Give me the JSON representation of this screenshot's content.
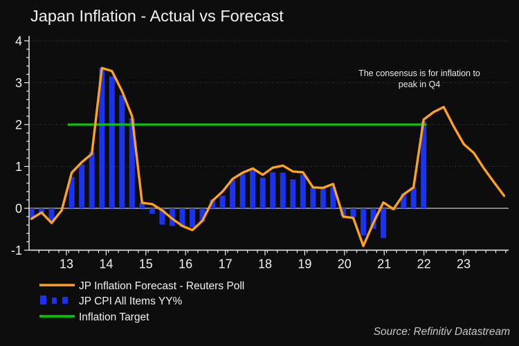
{
  "title": "Japan Inflation - Actual vs Forecast",
  "annotation": {
    "line1": "The consensus is for inflation to",
    "line2": "peak in Q4"
  },
  "source": "Source: Refinitiv Datastream",
  "legend": {
    "items": [
      {
        "label": "JP Inflation Forecast - Reuters Poll",
        "swatch": "line",
        "color": "#ffa21e"
      },
      {
        "label": "JP CPI All Items YY%",
        "swatch": "bars",
        "color": "#1c33ee"
      },
      {
        "label": "Inflation Target",
        "swatch": "line",
        "color": "#00cc00"
      }
    ]
  },
  "colors": {
    "background": "#0d0d0d",
    "forecast_line": "#ffa21e",
    "cpi_bars": "#1c33ee",
    "target_line": "#00cc00",
    "zero_line": "#ababab",
    "gridline": "#474747",
    "axis": "#f2f2f2",
    "text": "#f2f2f2"
  },
  "chart_data": {
    "type": "bar+line",
    "frequency": "quarterly",
    "ylim": [
      -1,
      4
    ],
    "y_tick_labels": [
      "-1",
      "0",
      "1",
      "2",
      "3",
      "4"
    ],
    "y_ticks": [
      -1,
      0,
      1,
      2,
      3,
      4
    ],
    "x_tick_labels": [
      "13",
      "14",
      "15",
      "16",
      "17",
      "18",
      "19",
      "20",
      "21",
      "22",
      "23"
    ],
    "grid_values": [
      1,
      2,
      3,
      4
    ],
    "series": [
      {
        "name": "JP CPI All Items YY%",
        "type": "bar",
        "color": "#1c33ee",
        "values": [
          -0.22,
          -0.13,
          -0.33,
          0,
          0.75,
          1.05,
          1.35,
          3.35,
          3.15,
          2.7,
          2.15,
          0.13,
          -0.13,
          -0.39,
          -0.42,
          -0.45,
          -0.45,
          -0.32,
          0.21,
          0.3,
          0.68,
          0.82,
          0.91,
          0.73,
          0.86,
          0.85,
          0.69,
          0.8,
          0.49,
          0.5,
          0.51,
          -0.18,
          -0.21,
          -0.65,
          -0.49,
          -0.71,
          -0.05,
          0.35,
          0.5,
          2.08
        ]
      },
      {
        "name": "JP Inflation Forecast - Reuters Poll",
        "type": "line",
        "color": "#ffa21e",
        "values": [
          -0.25,
          -0.1,
          -0.35,
          -0.05,
          0.85,
          1.1,
          1.3,
          3.35,
          3.28,
          2.8,
          2.2,
          0.13,
          0.1,
          -0.05,
          -0.25,
          -0.42,
          -0.52,
          -0.3,
          0.18,
          0.4,
          0.7,
          0.85,
          0.95,
          0.8,
          0.97,
          1.02,
          0.88,
          0.86,
          0.5,
          0.49,
          0.58,
          -0.2,
          -0.23,
          -0.9,
          -0.35,
          0.14,
          -0.02,
          0.33,
          0.5,
          2.12,
          2.3,
          2.42,
          1.95,
          1.53,
          1.32,
          0.95,
          0.62,
          0.3
        ]
      },
      {
        "name": "Inflation Target",
        "type": "target-line",
        "color": "#00cc00",
        "value": 2.0,
        "start_index": 3.6,
        "end_index": 39.3
      }
    ],
    "legend_position": "bottom-left",
    "grid": "dotted horizontal at integers"
  }
}
